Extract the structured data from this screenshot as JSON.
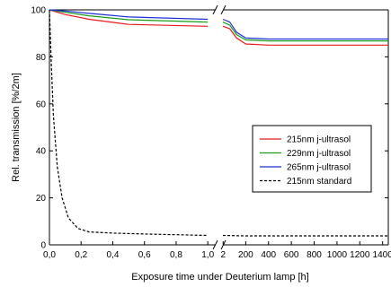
{
  "chart_data": {
    "type": "line",
    "title": "",
    "xlabel": "Exposure time under Deuterium lamp [h]",
    "ylabel": "Rel. transmission [%/2m]",
    "ylim": [
      0,
      100
    ],
    "yticks": [
      "0",
      "20",
      "40",
      "60",
      "80",
      "100"
    ],
    "x_segments": [
      {
        "xlim": [
          0,
          1.05
        ],
        "ticks": [
          0,
          0.2,
          0.4,
          0.6,
          0.8,
          1.0
        ],
        "tick_labels": [
          "0,0",
          "0,2",
          "0,4",
          "0,6",
          "0,8",
          "1,0"
        ]
      },
      {
        "xlim": [
          0,
          1450
        ],
        "ticks": [
          2,
          200,
          400,
          600,
          800,
          1000,
          1200,
          1400
        ],
        "tick_labels": [
          "2",
          "200",
          "400",
          "600",
          "800",
          "1000",
          "1200",
          "1400"
        ]
      }
    ],
    "axis_break": "x between 1,0 h and 2 h",
    "grid": false,
    "legend_position": "lower-right",
    "series": [
      {
        "name": "215nm j-ultrasol",
        "color": "#e8191c",
        "dash": "solid",
        "seg1": [
          [
            0,
            100
          ],
          [
            0.1,
            98
          ],
          [
            0.25,
            96
          ],
          [
            0.5,
            93.8
          ],
          [
            1.0,
            93
          ]
        ],
        "seg2": [
          [
            0,
            93
          ],
          [
            60,
            92
          ],
          [
            120,
            88
          ],
          [
            200,
            85.5
          ],
          [
            400,
            85
          ],
          [
            1450,
            85
          ]
        ]
      },
      {
        "name": "229nm j-ultrasol",
        "color": "#1a9b1a",
        "dash": "solid",
        "seg1": [
          [
            0,
            100
          ],
          [
            0.1,
            99
          ],
          [
            0.25,
            97.5
          ],
          [
            0.5,
            95.8
          ],
          [
            1.0,
            94.8
          ]
        ],
        "seg2": [
          [
            0,
            94.8
          ],
          [
            60,
            93.5
          ],
          [
            120,
            89.5
          ],
          [
            200,
            87.2
          ],
          [
            400,
            86.8
          ],
          [
            1450,
            86.8
          ]
        ]
      },
      {
        "name": "265nm j-ultrasol",
        "color": "#1c2fd9",
        "dash": "solid",
        "seg1": [
          [
            0,
            100
          ],
          [
            0.1,
            99.5
          ],
          [
            0.25,
            98.5
          ],
          [
            0.5,
            97
          ],
          [
            1.0,
            96
          ]
        ],
        "seg2": [
          [
            0,
            96
          ],
          [
            60,
            94.8
          ],
          [
            120,
            90.5
          ],
          [
            200,
            88
          ],
          [
            400,
            87.6
          ],
          [
            1450,
            87.6
          ]
        ]
      },
      {
        "name": "215nm standard",
        "color": "#000000",
        "dash": "dashed",
        "seg1": [
          [
            0,
            100
          ],
          [
            0.01,
            80
          ],
          [
            0.025,
            55
          ],
          [
            0.05,
            33
          ],
          [
            0.08,
            20
          ],
          [
            0.12,
            11.5
          ],
          [
            0.18,
            7
          ],
          [
            0.25,
            5.5
          ],
          [
            0.4,
            5
          ],
          [
            0.6,
            4.6
          ],
          [
            0.8,
            4.3
          ],
          [
            1.0,
            4
          ]
        ],
        "seg2": [
          [
            0,
            4
          ],
          [
            200,
            3.8
          ],
          [
            1450,
            3.8
          ]
        ]
      }
    ]
  }
}
